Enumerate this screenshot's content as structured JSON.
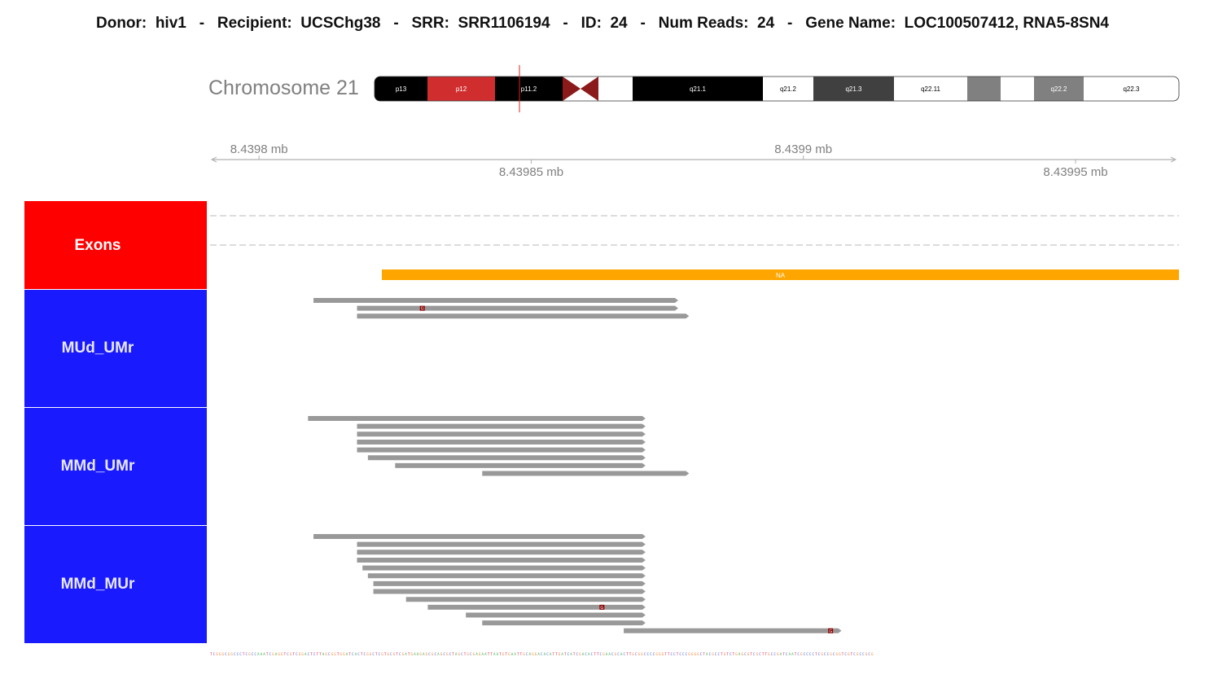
{
  "header": {
    "donor_label": "Donor:",
    "donor": "hiv1",
    "recipient_label": "Recipient:",
    "recipient": "UCSChg38",
    "srr_label": "SRR:",
    "srr": "SRR1106194",
    "id_label": "ID:",
    "id": "24",
    "reads_label": "Num Reads:",
    "reads": "24",
    "gene_label": "Gene Name:",
    "gene": "LOC100507412, RNA5-8SN4",
    "separator": "-"
  },
  "chromosome": {
    "label": "Chromosome 21",
    "bands": [
      {
        "name": "p13",
        "color": "#000000",
        "text": "#ffffff",
        "w": 65
      },
      {
        "name": "p12",
        "color": "#d02e2e",
        "text": "#ffffff",
        "w": 83
      },
      {
        "name": "p11.2",
        "color": "#000000",
        "text": "#ffffff",
        "w": 83
      },
      {
        "name": "",
        "color": "#8b1a1a",
        "text": "#ffffff",
        "w": 44,
        "centromere": true
      },
      {
        "name": "",
        "color": "#ffffff",
        "text": "#000000",
        "w": 42
      },
      {
        "name": "q21.1",
        "color": "#000000",
        "text": "#ffffff",
        "w": 160
      },
      {
        "name": "q21.2",
        "color": "#ffffff",
        "text": "#000000",
        "w": 62
      },
      {
        "name": "q21.3",
        "color": "#404040",
        "text": "#ffffff",
        "w": 99
      },
      {
        "name": "q22.11",
        "color": "#ffffff",
        "text": "#000000",
        "w": 90
      },
      {
        "name": "",
        "color": "#808080",
        "text": "#ffffff",
        "w": 41
      },
      {
        "name": "",
        "color": "#ffffff",
        "text": "#000000",
        "w": 41
      },
      {
        "name": "q22.2",
        "color": "#808080",
        "text": "#ffffff",
        "w": 61
      },
      {
        "name": "q22.3",
        "color": "#ffffff",
        "text": "#000000",
        "w": 117
      }
    ]
  },
  "axis": {
    "ticks_top": [
      {
        "label": "8.4398 mb",
        "mb": 8.4398
      },
      {
        "label": "8.4399 mb",
        "mb": 8.4399
      }
    ],
    "ticks_bottom": [
      {
        "label": "8.43985 mb",
        "mb": 8.43985
      },
      {
        "label": "8.43995 mb",
        "mb": 8.43995
      }
    ],
    "range_mb": [
      8.439791,
      8.439969
    ]
  },
  "tracks": {
    "exons_label": "Exons",
    "gene_label": "NA",
    "gene_color": "#ffa500",
    "panel_colors": {
      "exons": "#ff0000",
      "reads": "#1a1aff"
    },
    "read_color": "#999999",
    "mismatch_color": "#8b0000",
    "mismatch_base": "G",
    "groups": [
      {
        "label": "MUd_UMr",
        "reads": [
          {
            "start": 8.43981,
            "end": 8.439877
          },
          {
            "start": 8.439818,
            "end": 8.439877,
            "mismatch": 8.43983
          },
          {
            "start": 8.439818,
            "end": 8.439879
          }
        ]
      },
      {
        "label": "MMd_UMr",
        "reads": [
          {
            "start": 8.439809,
            "end": 8.439871
          },
          {
            "start": 8.439818,
            "end": 8.439871
          },
          {
            "start": 8.439818,
            "end": 8.439871
          },
          {
            "start": 8.439818,
            "end": 8.439871
          },
          {
            "start": 8.439818,
            "end": 8.439871
          },
          {
            "start": 8.43982,
            "end": 8.439871
          },
          {
            "start": 8.439825,
            "end": 8.439871
          },
          {
            "start": 8.439841,
            "end": 8.439879
          }
        ]
      },
      {
        "label": "MMd_MUr",
        "reads": [
          {
            "start": 8.43981,
            "end": 8.439871
          },
          {
            "start": 8.439818,
            "end": 8.439871
          },
          {
            "start": 8.439818,
            "end": 8.439871
          },
          {
            "start": 8.439818,
            "end": 8.439871
          },
          {
            "start": 8.439819,
            "end": 8.439871
          },
          {
            "start": 8.43982,
            "end": 8.439871
          },
          {
            "start": 8.439821,
            "end": 8.439871
          },
          {
            "start": 8.439821,
            "end": 8.439871
          },
          {
            "start": 8.439827,
            "end": 8.439871
          },
          {
            "start": 8.439831,
            "end": 8.439871,
            "mismatch": 8.439863
          },
          {
            "start": 8.439838,
            "end": 8.439871
          },
          {
            "start": 8.439841,
            "end": 8.439871
          },
          {
            "start": 8.439867,
            "end": 8.439907,
            "mismatch": 8.439905
          }
        ]
      }
    ]
  },
  "sequence": "TCGGGCGGCCCTCGCCAAATCGAGGTCGTCGGACTCTTAGCGGTGGATCACTCGGCTCGTGCGTCGATGAAGAGCGCAGCGCTAGCTGCGAGAATTAATGTGAATTGCAGGACACATTGATCATCGACACTTCGAACGCACTTGCGGCCCCGGGTTCCTCCCGGGGCTACGCCTGTCTGAGCGTCGCTTGCCGATCAATCGCCCCTCGCCGCGGTCGTCGCCGCG",
  "base_colors": {
    "A": "#3cb44b",
    "C": "#4363d8",
    "G": "#f58231",
    "T": "#e6194b"
  }
}
